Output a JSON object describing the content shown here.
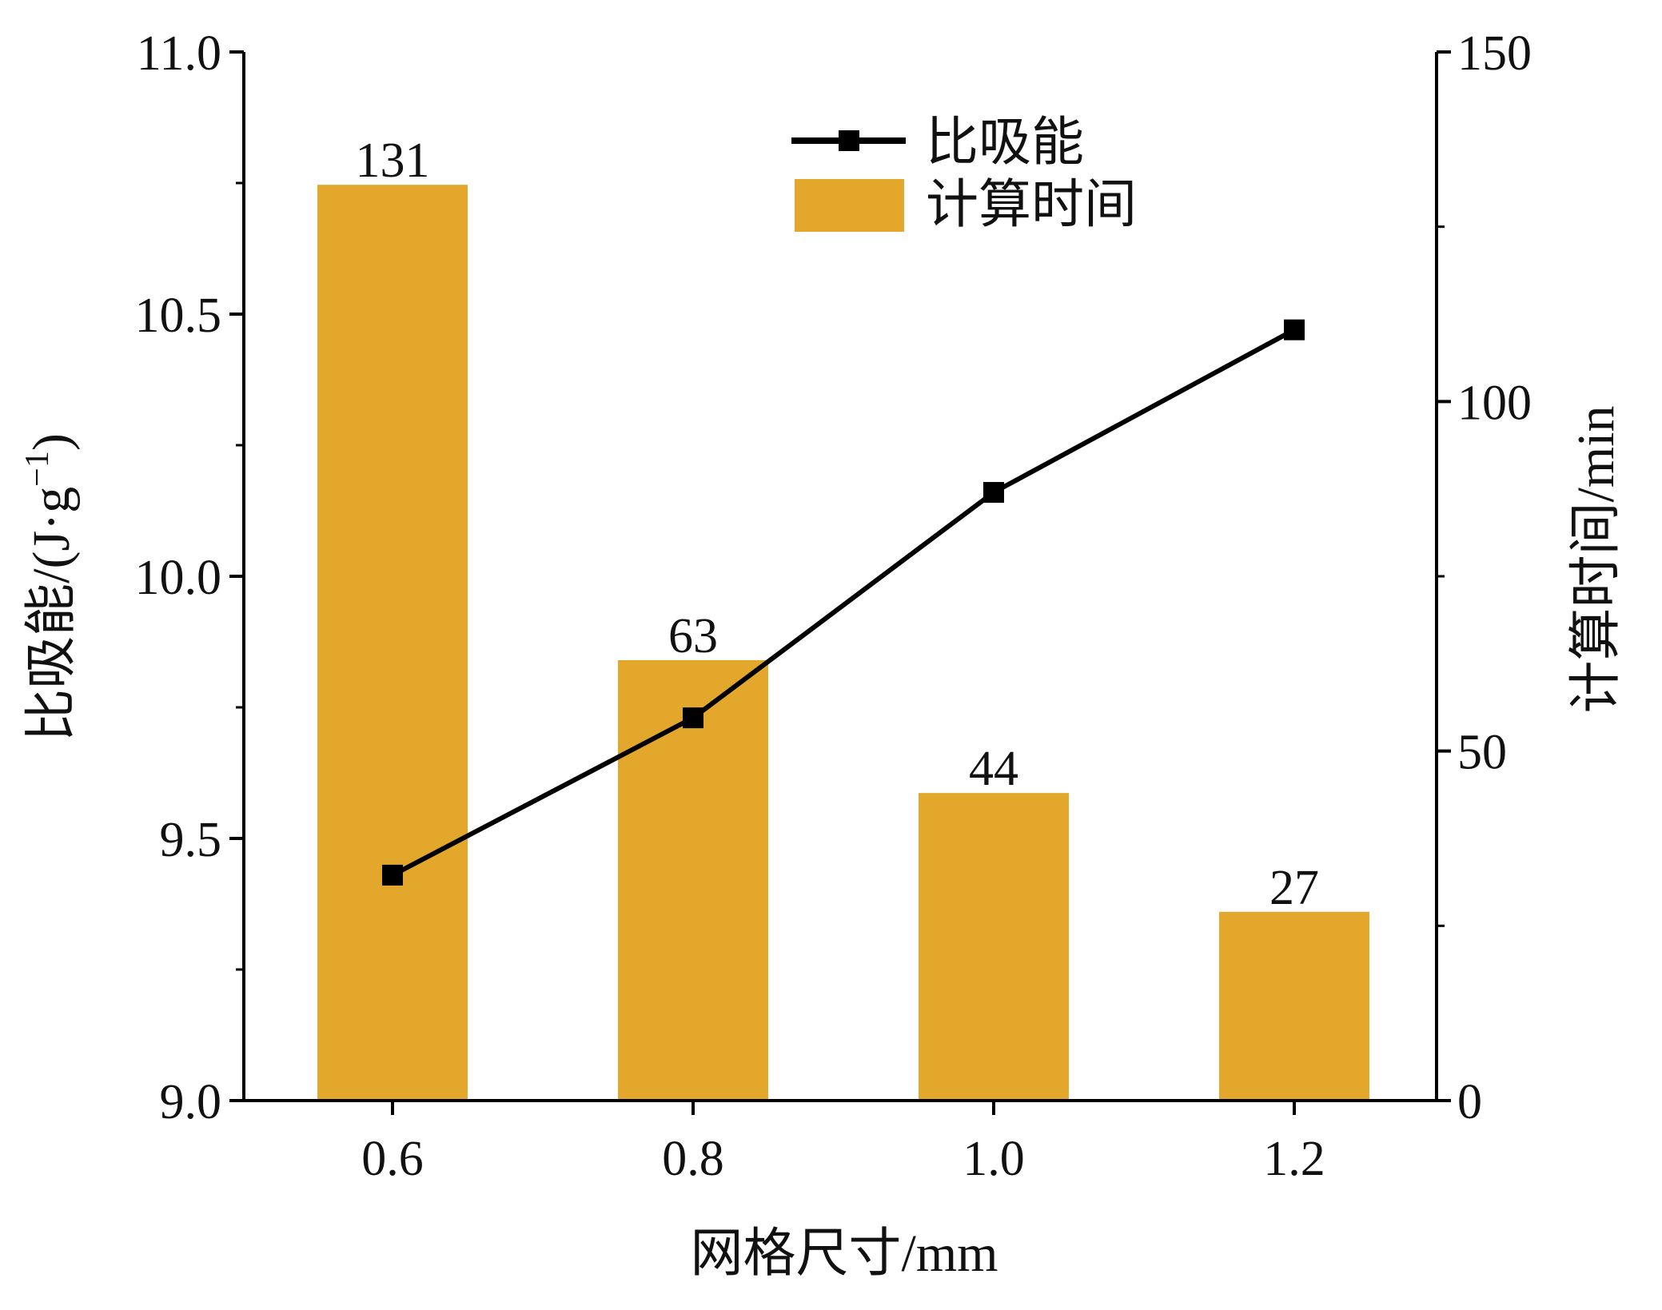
{
  "chart_data": {
    "type": "bar",
    "categories": [
      "0.6",
      "0.8",
      "1.0",
      "1.2"
    ],
    "series": [
      {
        "name": "计算时间",
        "type": "bar",
        "axis": "right",
        "color": "#e3a82b",
        "values": [
          131,
          63,
          44,
          27
        ]
      },
      {
        "name": "比吸能",
        "type": "line",
        "axis": "left",
        "color": "#000000",
        "marker": "square",
        "values": [
          9.43,
          9.73,
          10.16,
          10.47
        ]
      }
    ],
    "data_labels": [
      "131",
      "63",
      "44",
      "27"
    ],
    "xlabel": "网格尺寸/mm",
    "ylabel_left": {
      "prefix": "比吸能/(J·g",
      "superscript": "−1",
      "suffix": ")"
    },
    "ylabel_right": "计算时间/min",
    "ylim_left": [
      9.0,
      11.0
    ],
    "ylim_right": [
      0,
      150
    ],
    "yticks_left": [
      "9.0",
      "9.5",
      "10.0",
      "10.5",
      "11.0"
    ],
    "yticks_right": [
      "0",
      "50",
      "100",
      "150"
    ],
    "legend": {
      "position": "top-right",
      "entries": [
        "比吸能",
        "计算时间"
      ]
    },
    "grid": false
  }
}
